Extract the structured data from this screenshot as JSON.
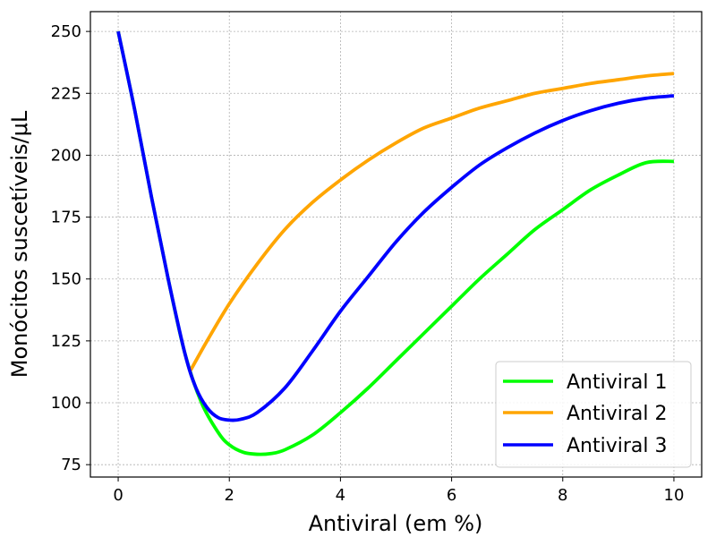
{
  "chart_data": {
    "type": "line",
    "xlabel": "Antiviral (em %)",
    "ylabel": "Monócitos suscetíveis/μL",
    "xlim": [
      -0.5,
      10.5
    ],
    "ylim": [
      70,
      258
    ],
    "xticks": [
      0,
      2,
      4,
      6,
      8,
      10
    ],
    "yticks": [
      75,
      100,
      125,
      150,
      175,
      200,
      225,
      250
    ],
    "grid": true,
    "legend_position": "lower-right",
    "series": [
      {
        "name": "Antiviral 1",
        "color": "#00ff00",
        "points": [
          [
            0,
            250
          ],
          [
            0.3,
            218
          ],
          [
            0.6,
            183
          ],
          [
            0.9,
            150
          ],
          [
            1.2,
            120
          ],
          [
            1.5,
            100
          ],
          [
            1.8,
            88
          ],
          [
            2.0,
            83
          ],
          [
            2.25,
            80
          ],
          [
            2.5,
            79.2
          ],
          [
            2.75,
            79.5
          ],
          [
            3.0,
            81
          ],
          [
            3.5,
            87
          ],
          [
            4.0,
            96
          ],
          [
            4.5,
            106
          ],
          [
            5.0,
            117
          ],
          [
            5.5,
            128
          ],
          [
            6.0,
            139
          ],
          [
            6.5,
            150
          ],
          [
            7.0,
            160
          ],
          [
            7.5,
            170
          ],
          [
            8.0,
            178
          ],
          [
            8.5,
            186
          ],
          [
            9.0,
            192
          ],
          [
            9.5,
            197
          ],
          [
            10.0,
            197.5
          ]
        ]
      },
      {
        "name": "Antiviral 2",
        "color": "#ffa500",
        "points": [
          [
            1.3,
            113
          ],
          [
            1.6,
            125
          ],
          [
            2.0,
            140
          ],
          [
            2.5,
            156
          ],
          [
            3.0,
            170
          ],
          [
            3.5,
            181
          ],
          [
            4.0,
            190
          ],
          [
            4.5,
            198
          ],
          [
            5.0,
            205
          ],
          [
            5.5,
            211
          ],
          [
            6.0,
            215
          ],
          [
            6.5,
            219
          ],
          [
            7.0,
            222
          ],
          [
            7.5,
            225
          ],
          [
            8.0,
            227
          ],
          [
            8.5,
            229
          ],
          [
            9.0,
            230.5
          ],
          [
            9.5,
            232
          ],
          [
            10.0,
            233
          ]
        ]
      },
      {
        "name": "Antiviral 3",
        "color": "#0000ff",
        "points": [
          [
            0,
            250
          ],
          [
            0.3,
            218
          ],
          [
            0.6,
            183
          ],
          [
            0.9,
            150
          ],
          [
            1.2,
            120
          ],
          [
            1.4,
            106
          ],
          [
            1.6,
            98
          ],
          [
            1.8,
            94
          ],
          [
            2.0,
            93
          ],
          [
            2.2,
            93.3
          ],
          [
            2.5,
            96
          ],
          [
            3.0,
            106
          ],
          [
            3.5,
            121
          ],
          [
            4.0,
            137
          ],
          [
            4.5,
            151
          ],
          [
            5.0,
            165
          ],
          [
            5.5,
            177
          ],
          [
            6.0,
            187
          ],
          [
            6.5,
            196
          ],
          [
            7.0,
            203
          ],
          [
            7.5,
            209
          ],
          [
            8.0,
            214
          ],
          [
            8.5,
            218
          ],
          [
            9.0,
            221
          ],
          [
            9.5,
            223
          ],
          [
            10.0,
            224
          ]
        ]
      }
    ]
  }
}
